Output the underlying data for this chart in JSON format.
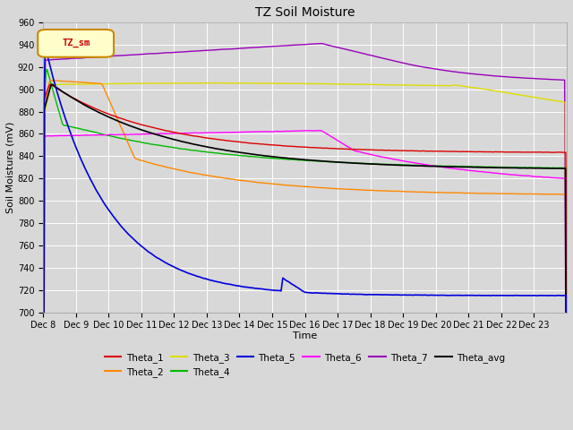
{
  "title": "TZ Soil Moisture",
  "xlabel": "Time",
  "ylabel": "Soil Moisture (mV)",
  "ylim": [
    700,
    960
  ],
  "yticks": [
    700,
    720,
    740,
    760,
    780,
    800,
    820,
    840,
    860,
    880,
    900,
    920,
    940,
    960
  ],
  "x_labels": [
    "Dec 8",
    "Dec 9",
    "Dec 10",
    "Dec 11",
    "Dec 12",
    "Dec 13",
    "Dec 14",
    "Dec 15",
    "Dec 16",
    "Dec 17",
    "Dec 18",
    "Dec 19",
    "Dec 20",
    "Dec 21",
    "Dec 22",
    "Dec 23"
  ],
  "legend_label": "TZ_sm",
  "series_colors": {
    "Theta_1": "#dd0000",
    "Theta_2": "#ff8800",
    "Theta_3": "#dddd00",
    "Theta_4": "#00bb00",
    "Theta_5": "#0000dd",
    "Theta_6": "#ff00ff",
    "Theta_7": "#9900bb",
    "Theta_avg": "#000000"
  },
  "background_color": "#d8d8d8",
  "plot_bg_color": "#d8d8d8",
  "grid_color": "#ffffff",
  "fig_bg_color": "#d8d8d8"
}
